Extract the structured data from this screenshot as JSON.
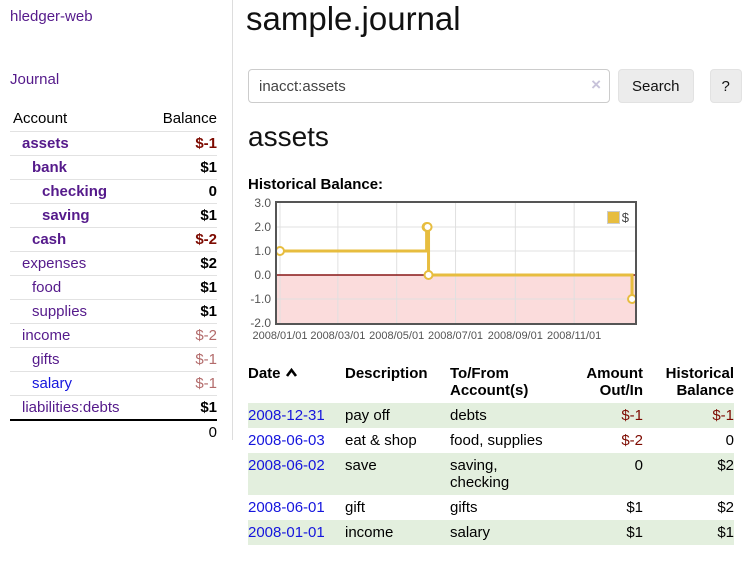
{
  "colors": {
    "link_purple": "#551a8b",
    "link_blue": "#1515dd",
    "negative_strong": "#7d0a00",
    "negative_faded": "#b36b6b",
    "row_green": "#e3efde",
    "chart_line_gold": "#e7bd3f",
    "chart_negative_fill": "#fbdcdc",
    "chart_zero_line": "#881717",
    "chart_border": "#555555"
  },
  "sidebar": {
    "app_title": "hledger-web",
    "nav_journal": "Journal",
    "accounts_table": {
      "headers": [
        "Account",
        "Balance"
      ],
      "rows": [
        {
          "account": "assets",
          "indent": 1,
          "emphasis": true,
          "link_color": "purple",
          "balance": "$-1",
          "balance_style": "neg-strong"
        },
        {
          "account": "bank",
          "indent": 2,
          "emphasis": true,
          "link_color": "purple",
          "balance": "$1",
          "balance_style": "pos"
        },
        {
          "account": "checking",
          "indent": 3,
          "emphasis": true,
          "link_color": "purple",
          "balance": "0",
          "balance_style": "pos"
        },
        {
          "account": "saving",
          "indent": 3,
          "emphasis": true,
          "link_color": "purple",
          "balance": "$1",
          "balance_style": "pos"
        },
        {
          "account": "cash",
          "indent": 2,
          "emphasis": true,
          "link_color": "purple",
          "balance": "$-2",
          "balance_style": "neg-strong"
        },
        {
          "account": "expenses",
          "indent": 1,
          "emphasis": false,
          "link_color": "purple",
          "balance": "$2",
          "balance_style": "pos"
        },
        {
          "account": "food",
          "indent": 2,
          "emphasis": false,
          "link_color": "purple",
          "balance": "$1",
          "balance_style": "pos"
        },
        {
          "account": "supplies",
          "indent": 2,
          "emphasis": false,
          "link_color": "purple",
          "balance": "$1",
          "balance_style": "pos"
        },
        {
          "account": "income",
          "indent": 1,
          "emphasis": false,
          "link_color": "purple",
          "balance": "$-2",
          "balance_style": "neg-faded"
        },
        {
          "account": "gifts",
          "indent": 2,
          "emphasis": false,
          "link_color": "purple",
          "balance": "$-1",
          "balance_style": "neg-faded"
        },
        {
          "account": "salary",
          "indent": 2,
          "emphasis": false,
          "link_color": "blue",
          "balance": "$-1",
          "balance_style": "neg-faded"
        },
        {
          "account": "liabilities:debts",
          "indent": 1,
          "emphasis": false,
          "link_color": "purple",
          "balance": "$1",
          "balance_style": "pos"
        }
      ],
      "total": "0"
    }
  },
  "main": {
    "title": "sample.journal",
    "search": {
      "value": "inacct:assets",
      "clear_icon": "×",
      "button_label": "Search",
      "help_label": "?"
    },
    "account_heading": "assets",
    "chart_heading": "Historical Balance:",
    "register_table": {
      "headers": {
        "date": "Date",
        "description": "Description",
        "accounts": "To/From Account(s)",
        "amount": "Amount Out/In",
        "balance": "Historical Balance"
      },
      "sort": {
        "column": "date",
        "direction": "ascending"
      },
      "rows": [
        {
          "date": "2008-12-31",
          "description": "pay off",
          "accounts": "debts",
          "amount": "$-1",
          "amount_negative": true,
          "balance": "$-1",
          "balance_negative": true,
          "shaded": true
        },
        {
          "date": "2008-06-03",
          "description": "eat & shop",
          "accounts": "food, supplies",
          "amount": "$-2",
          "amount_negative": true,
          "balance": "0",
          "balance_negative": false,
          "shaded": false
        },
        {
          "date": "2008-06-02",
          "description": "save",
          "accounts": "saving, checking",
          "amount": "0",
          "amount_negative": false,
          "balance": "$2",
          "balance_negative": false,
          "shaded": true
        },
        {
          "date": "2008-06-01",
          "description": "gift",
          "accounts": "gifts",
          "amount": "$1",
          "amount_negative": false,
          "balance": "$2",
          "balance_negative": false,
          "shaded": false
        },
        {
          "date": "2008-01-01",
          "description": "income",
          "accounts": "salary",
          "amount": "$1",
          "amount_negative": false,
          "balance": "$1",
          "balance_negative": false,
          "shaded": true
        }
      ]
    }
  },
  "chart_data": {
    "type": "line",
    "step": true,
    "title": "Historical Balance:",
    "legend_label": "$",
    "legend_position": "top-right",
    "grid": true,
    "ylim": [
      -2,
      3
    ],
    "y_ticks": [
      "3.0",
      "2.0",
      "1.0",
      "0.0",
      "-1.0",
      "-2.0"
    ],
    "x_ticks": [
      {
        "label": "2008/01/01",
        "day": 0
      },
      {
        "label": "2008/03/01",
        "day": 60
      },
      {
        "label": "2008/05/01",
        "day": 121
      },
      {
        "label": "2008/07/01",
        "day": 182
      },
      {
        "label": "2008/09/01",
        "day": 244
      },
      {
        "label": "2008/11/01",
        "day": 305
      }
    ],
    "x_total_days": 366,
    "series": [
      {
        "name": "$",
        "points": [
          {
            "date": "2008-01-01",
            "day": 0,
            "value": 1
          },
          {
            "date": "2008-06-01",
            "day": 152,
            "value": 2
          },
          {
            "date": "2008-06-02",
            "day": 153,
            "value": 2
          },
          {
            "date": "2008-06-03",
            "day": 154,
            "value": 0
          },
          {
            "date": "2008-12-31",
            "day": 365,
            "value": -1
          }
        ]
      }
    ]
  }
}
